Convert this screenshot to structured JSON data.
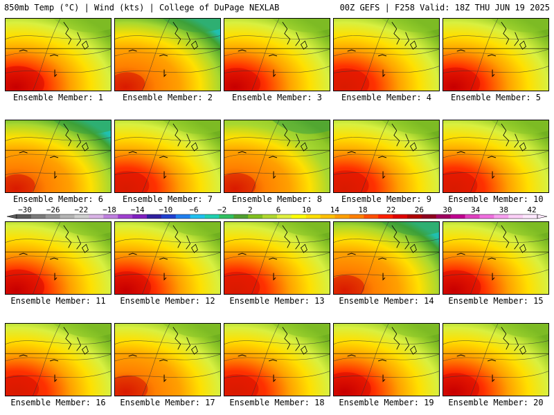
{
  "header": {
    "left": "850mb Temp (°C) | Wind (kts) | College of DuPage NEXLAB",
    "right": "00Z GEFS | F258 Valid: 18Z THU JUN 19 2025"
  },
  "members": [
    {
      "label": "Ensemble Member: 1",
      "warmth": 0.72
    },
    {
      "label": "Ensemble Member: 2",
      "warmth": 0.4
    },
    {
      "label": "Ensemble Member: 3",
      "warmth": 0.62
    },
    {
      "label": "Ensemble Member: 4",
      "warmth": 0.6
    },
    {
      "label": "Ensemble Member: 5",
      "warmth": 0.65
    },
    {
      "label": "Ensemble Member: 6",
      "warmth": 0.38
    },
    {
      "label": "Ensemble Member: 7",
      "warmth": 0.55
    },
    {
      "label": "Ensemble Member: 8",
      "warmth": 0.45
    },
    {
      "label": "Ensemble Member: 9",
      "warmth": 0.58
    },
    {
      "label": "Ensemble Member: 10",
      "warmth": 0.55
    },
    {
      "label": "Ensemble Member: 11",
      "warmth": 0.72
    },
    {
      "label": "Ensemble Member: 12",
      "warmth": 0.62
    },
    {
      "label": "Ensemble Member: 13",
      "warmth": 0.6
    },
    {
      "label": "Ensemble Member: 14",
      "warmth": 0.42
    },
    {
      "label": "Ensemble Member: 15",
      "warmth": 0.68
    },
    {
      "label": "Ensemble Member: 16",
      "warmth": 0.52
    },
    {
      "label": "Ensemble Member: 17",
      "warmth": 0.5
    },
    {
      "label": "Ensemble Member: 18",
      "warmth": 0.55
    },
    {
      "label": "Ensemble Member: 19",
      "warmth": 0.66
    },
    {
      "label": "Ensemble Member: 20",
      "warmth": 0.62
    }
  ],
  "colorbar": {
    "labels": [
      "−30",
      "−26",
      "−22",
      "−18",
      "−14",
      "−10",
      "−6",
      "−2",
      "2",
      "6",
      "10",
      "14",
      "18",
      "22",
      "26",
      "30",
      "34",
      "38",
      "42"
    ],
    "colors": [
      "#5a5a5a",
      "#7a7a7a",
      "#969696",
      "#b4b4b4",
      "#cfcfcf",
      "#d9b3e6",
      "#c080e0",
      "#a040d0",
      "#8020c0",
      "#3020a0",
      "#2040d0",
      "#2080f0",
      "#20c0f0",
      "#20d0b0",
      "#30c060",
      "#50a030",
      "#80c020",
      "#b0d830",
      "#e0f040",
      "#ffff00",
      "#ffe000",
      "#ffc000",
      "#ffa000",
      "#ff8000",
      "#ff5000",
      "#ff2000",
      "#e00000",
      "#b00000",
      "#900020",
      "#a00060",
      "#c00090",
      "#e040c0",
      "#f070e0",
      "#f8a0f0",
      "#fcd0f8",
      "#ffe8ff"
    ]
  }
}
